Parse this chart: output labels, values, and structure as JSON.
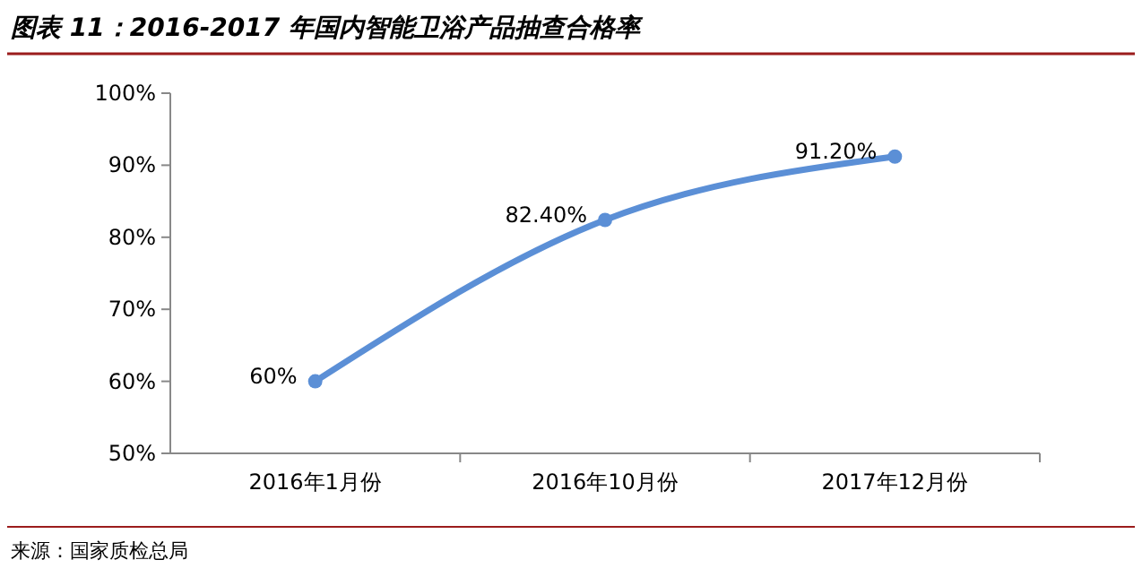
{
  "chart_data": {
    "type": "line",
    "title": "图表 11：2016-2017 年国内智能卫浴产品抽查合格率",
    "categories": [
      "2016年1月份",
      "2016年10月份",
      "2017年12月份"
    ],
    "series": [
      {
        "color": "#5b8fd6",
        "values": [
          60,
          82.4,
          91.2
        ],
        "value_labels": [
          "60%",
          "82.40%",
          "91.20%"
        ]
      }
    ],
    "ylim": [
      50,
      100
    ],
    "yticks": [
      {
        "value": 50,
        "label": "50%"
      },
      {
        "value": 60,
        "label": "60%"
      },
      {
        "value": 70,
        "label": "70%"
      },
      {
        "value": 80,
        "label": "80%"
      },
      {
        "value": 90,
        "label": "90%"
      },
      {
        "value": 100,
        "label": "100%"
      }
    ],
    "marker": "circle",
    "line_style": "solid",
    "annotations": [
      "来源：国家质检总局"
    ]
  }
}
